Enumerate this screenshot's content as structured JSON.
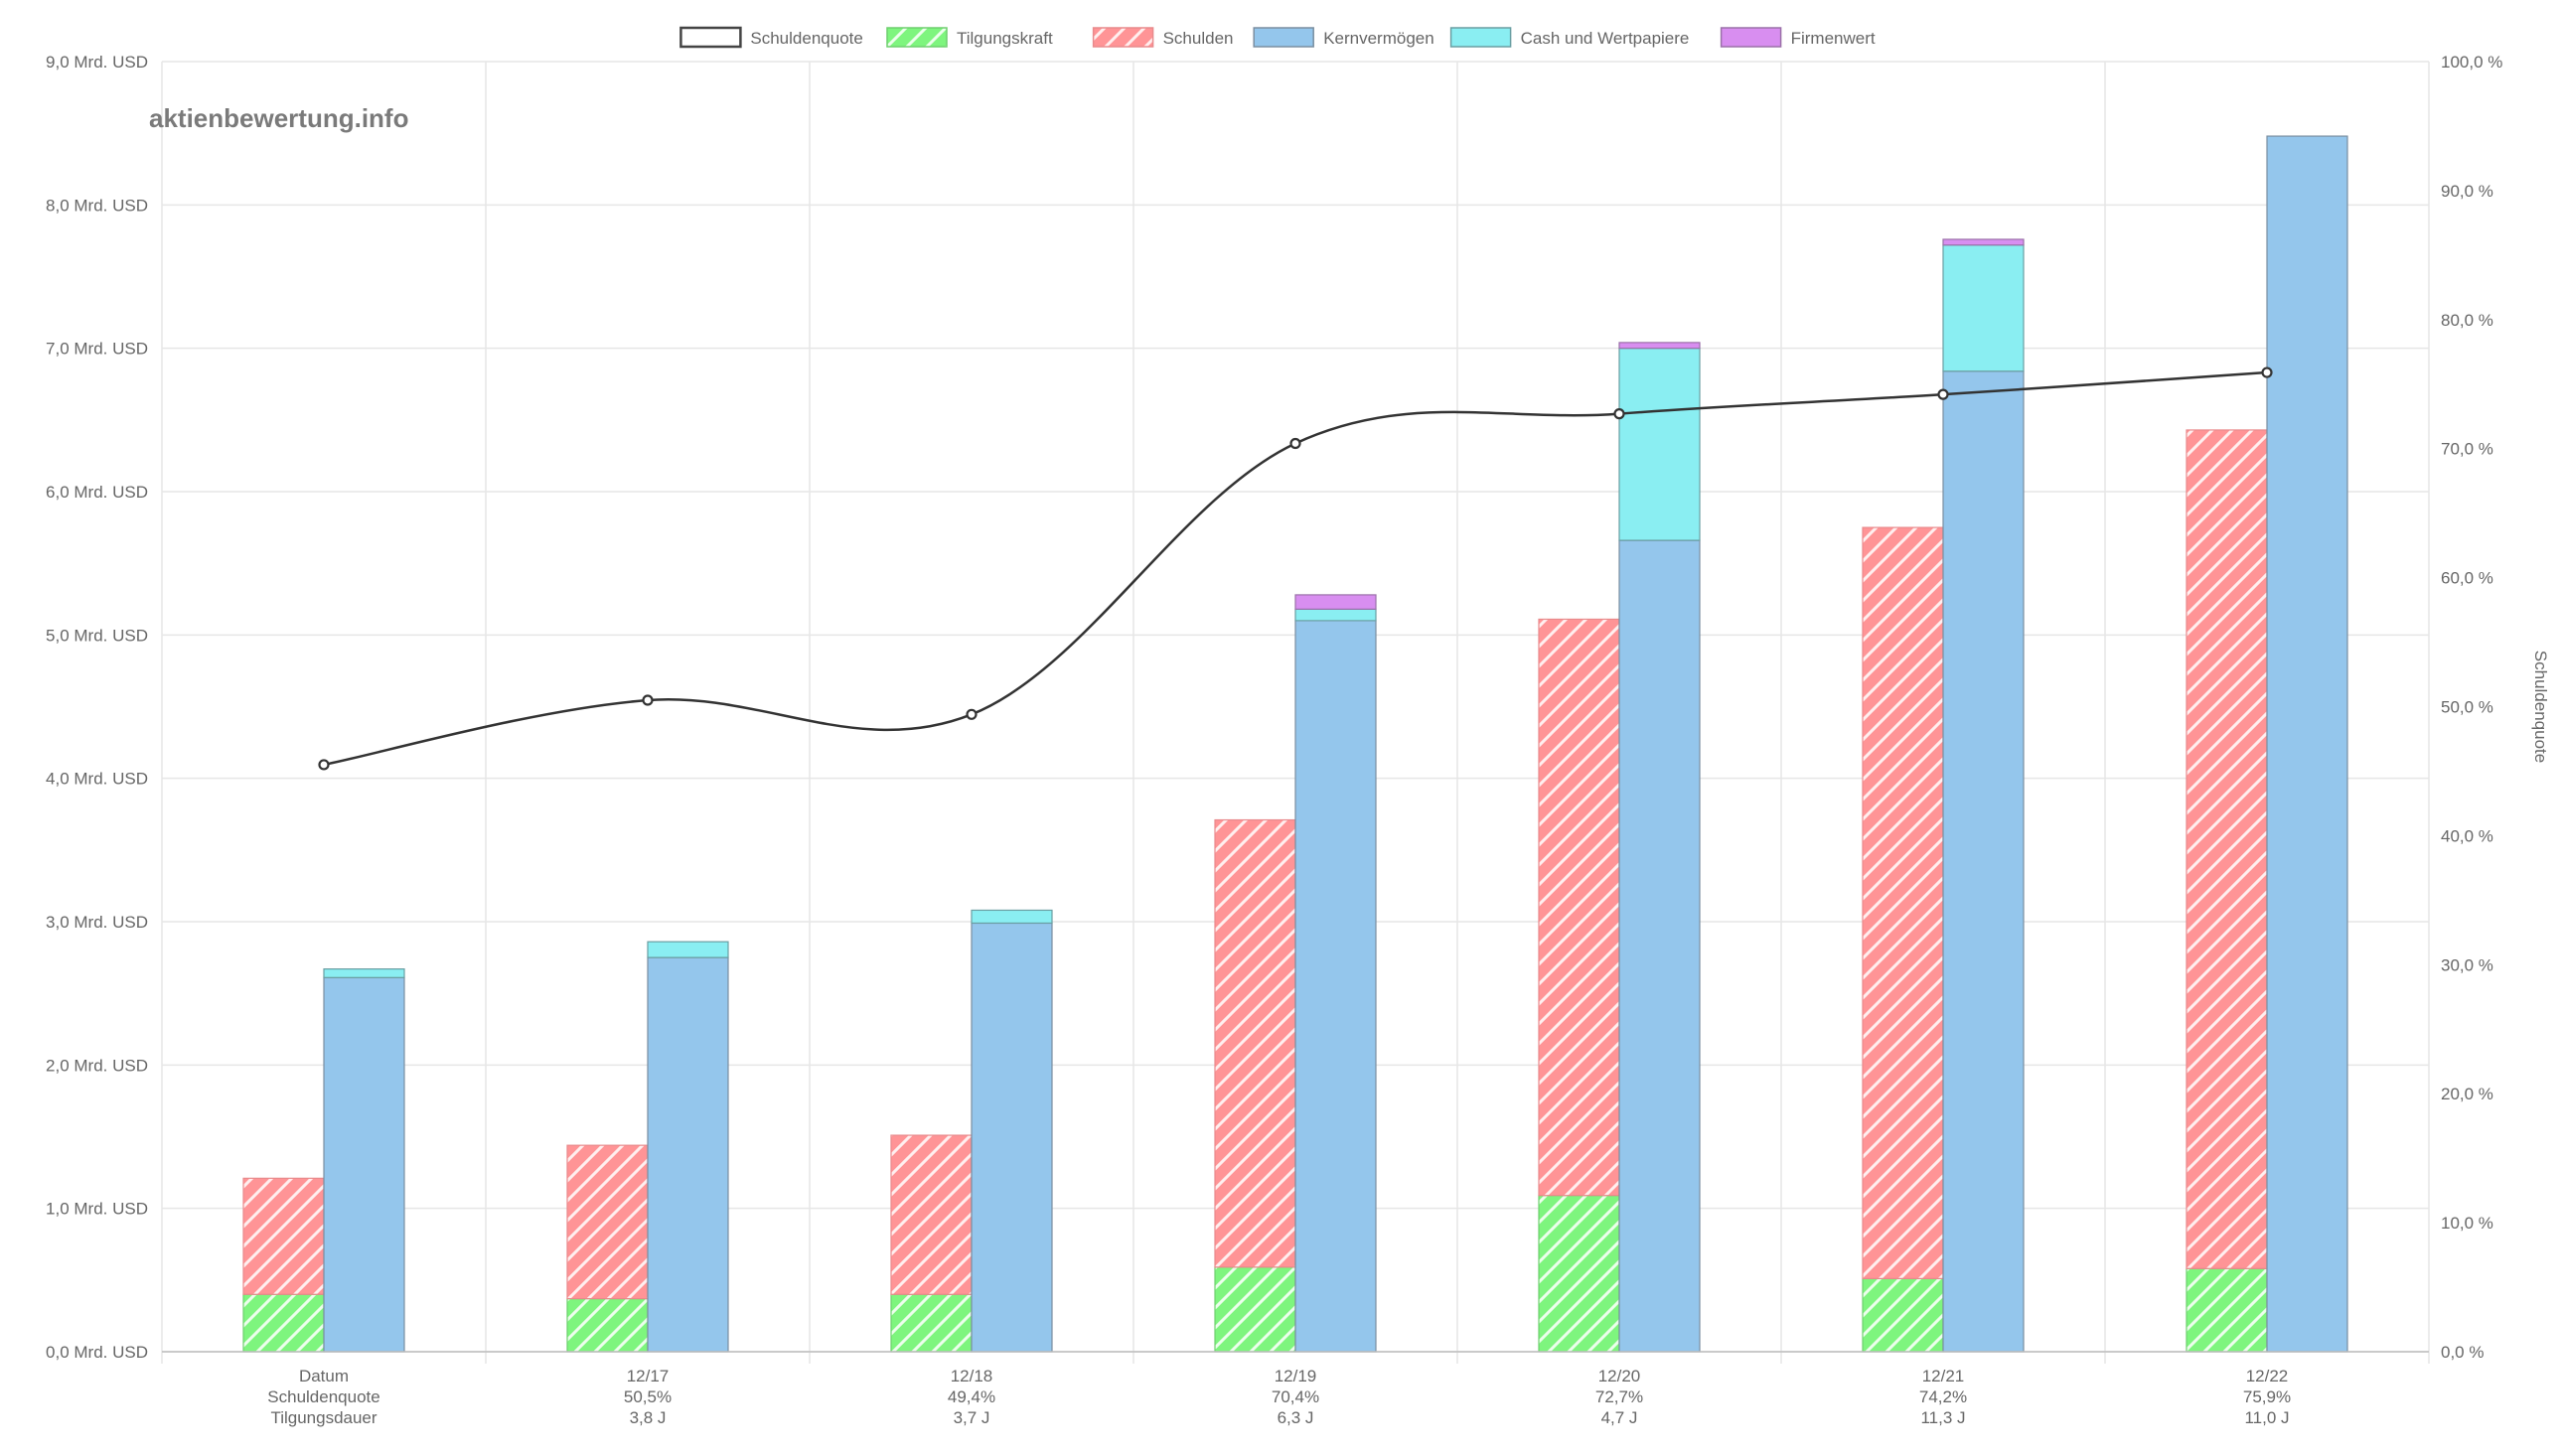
{
  "watermark": "aktienbewertung.info",
  "colors": {
    "tilgungskraft": "#7ef57e",
    "schulden": "#ff9496",
    "kernvermoegen": "#94c6ec",
    "cash": "#8aeef2",
    "firmenwert": "#d88ef0",
    "line": "#333333",
    "grid": "#e6e6e6"
  },
  "chart_data": {
    "type": "bar",
    "categories": [
      "Datum",
      "12/17",
      "12/18",
      "12/19",
      "12/20",
      "12/21",
      "12/22"
    ],
    "category_rows": [
      [
        "Datum",
        "Schuldenquote",
        "Tilgungsdauer"
      ],
      [
        "12/17",
        "50,5%",
        "3,8 J"
      ],
      [
        "12/18",
        "49,4%",
        "3,7 J"
      ],
      [
        "12/19",
        "70,4%",
        "6,3 J"
      ],
      [
        "12/20",
        "72,7%",
        "4,7 J"
      ],
      [
        "12/21",
        "74,2%",
        "11,3 J"
      ],
      [
        "12/22",
        "75,9%",
        "11,0 J"
      ]
    ],
    "legend": [
      "Schuldenquote",
      "Tilgungskraft",
      "Schulden",
      "Kernvermögen",
      "Cash und Wertpapiere",
      "Firmenwert"
    ],
    "legend_position": "top",
    "series": [
      {
        "name": "Tilgungskraft",
        "stack": "left",
        "values": [
          0.4,
          0.37,
          0.4,
          0.59,
          1.09,
          0.51,
          0.58
        ]
      },
      {
        "name": "Schulden",
        "stack": "left",
        "values": [
          0.81,
          1.07,
          1.11,
          3.12,
          4.02,
          5.24,
          5.85
        ]
      },
      {
        "name": "Kernvermögen",
        "stack": "right",
        "values": [
          2.61,
          2.75,
          2.99,
          5.1,
          5.66,
          6.84,
          8.48
        ]
      },
      {
        "name": "Cash und Wertpapiere",
        "stack": "right",
        "values": [
          0.06,
          0.11,
          0.09,
          0.08,
          1.34,
          0.88,
          0.0
        ]
      },
      {
        "name": "Firmenwert",
        "stack": "right",
        "values": [
          0.0,
          0.0,
          0.0,
          0.1,
          0.04,
          0.04,
          0.0
        ]
      },
      {
        "name": "Schuldenquote",
        "type": "line",
        "axis": "right",
        "values": [
          45.5,
          50.5,
          49.4,
          70.4,
          72.7,
          74.2,
          75.9
        ]
      }
    ],
    "y_left": {
      "min": 0,
      "max": 9,
      "step": 1,
      "tick_labels": [
        "0,0 Mrd. USD",
        "1,0 Mrd. USD",
        "2,0 Mrd. USD",
        "3,0 Mrd. USD",
        "4,0 Mrd. USD",
        "5,0 Mrd. USD",
        "6,0 Mrd. USD",
        "7,0 Mrd. USD",
        "8,0 Mrd. USD",
        "9,0 Mrd. USD"
      ]
    },
    "y_right": {
      "min": 0,
      "max": 100,
      "step": 10,
      "label": "Schuldenquote",
      "tick_labels": [
        "0,0 %",
        "10,0 %",
        "20,0 %",
        "30,0 %",
        "40,0 %",
        "50,0 %",
        "60,0 %",
        "70,0 %",
        "80,0 %",
        "90,0 %",
        "100,0 %"
      ]
    },
    "grid": true
  }
}
